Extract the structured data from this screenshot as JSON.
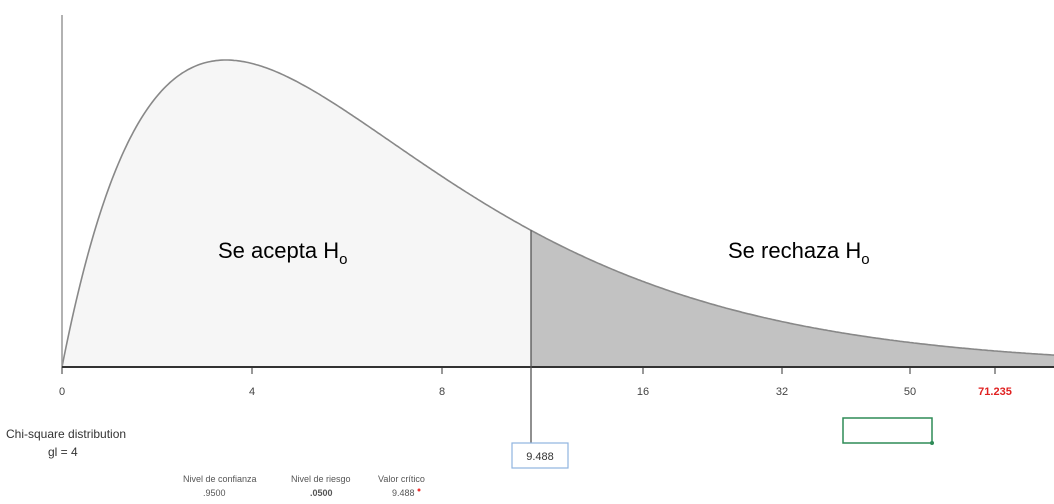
{
  "regions": {
    "accept": {
      "text": "Se acepta H",
      "sub": "o"
    },
    "reject": {
      "text": "Se rechaza H",
      "sub": "o"
    }
  },
  "axis_labels": [
    "0",
    "4",
    "8",
    "16",
    "32",
    "50",
    "71.235"
  ],
  "info": {
    "title": "Chi-square distribution",
    "df": "gl = 4"
  },
  "stats": [
    {
      "label": "Nivel de confianza",
      "value": ".9500"
    },
    {
      "label": "Nivel de riesgo",
      "value": ".0500"
    },
    {
      "label": "Valor crítico",
      "value": "9.488"
    }
  ],
  "critical_box": "9.488"
}
